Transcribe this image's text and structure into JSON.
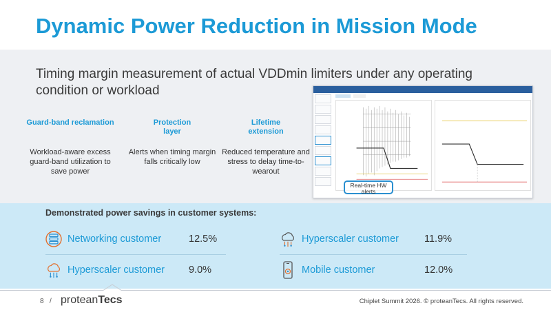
{
  "title": "Dynamic Power Reduction in Mission Mode",
  "subtitle": "Timing margin measurement of actual VDDmin limiters under any operating condition or workload",
  "benefits": [
    {
      "heading": "Guard-band reclamation",
      "body": "Workload-aware excess guard-band utilization to save power"
    },
    {
      "heading": "Protection layer",
      "body": "Alerts when timing margin falls critically low"
    },
    {
      "heading": "Lifetime extension",
      "body": "Reduced temperature and stress to delay time-to-wearout"
    }
  ],
  "screenshot_callout": "Real-time HW alerts",
  "demo": {
    "title": "Demonstrated power savings in customer systems:",
    "customers": [
      {
        "name": "Networking customer",
        "value": "12.5%",
        "icon": "network-server-icon"
      },
      {
        "name": "Hyperscaler customer",
        "value": "11.9%",
        "icon": "cloud-icon"
      },
      {
        "name": "Hyperscaler customer",
        "value": "9.0%",
        "icon": "cloud-icon"
      },
      {
        "name": "Mobile customer",
        "value": "12.0%",
        "icon": "mobile-phone-icon"
      }
    ]
  },
  "footer": {
    "page": "8",
    "separator": "/",
    "logo_prefix": "protean",
    "logo_suffix": "Tecs",
    "copyright": "Chiplet Summit 2026. © proteanTecs. All rights reserved."
  },
  "colors": {
    "accent": "#1c9ad6",
    "band_gray": "#eef0f3",
    "band_blue": "#cce9f7"
  }
}
